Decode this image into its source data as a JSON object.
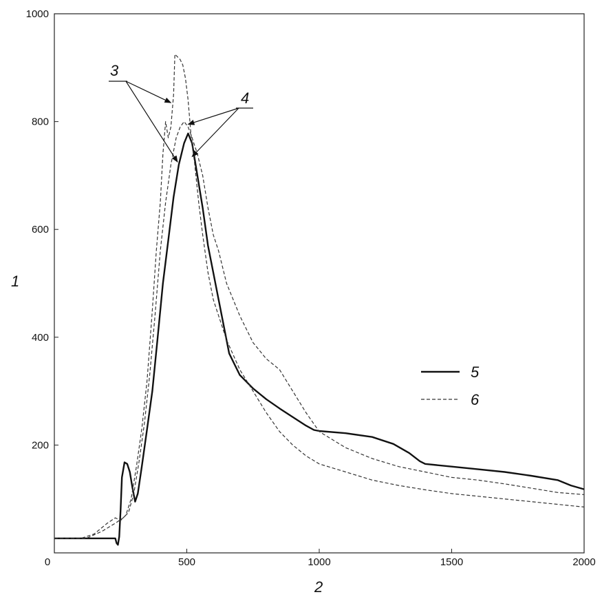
{
  "chart_data": {
    "type": "line",
    "title": "",
    "xlabel": "2",
    "ylabel": "1",
    "xlim": [
      0,
      2000
    ],
    "ylim": [
      0,
      1000
    ],
    "x_ticks": [
      "0",
      "500",
      "1000",
      "1500",
      "2000"
    ],
    "y_ticks": [
      "200",
      "400",
      "600",
      "800",
      "1000"
    ],
    "grid": false,
    "legend_position": "center-right",
    "series": [
      {
        "name": "5",
        "style": "solid",
        "color": "#111111",
        "points": [
          [
            0,
            27
          ],
          [
            200,
            27
          ],
          [
            230,
            27
          ],
          [
            235,
            18
          ],
          [
            240,
            15
          ],
          [
            245,
            30
          ],
          [
            250,
            80
          ],
          [
            255,
            140
          ],
          [
            265,
            168
          ],
          [
            275,
            165
          ],
          [
            285,
            150
          ],
          [
            295,
            120
          ],
          [
            305,
            95
          ],
          [
            315,
            110
          ],
          [
            330,
            160
          ],
          [
            350,
            230
          ],
          [
            370,
            300
          ],
          [
            390,
            400
          ],
          [
            410,
            500
          ],
          [
            430,
            580
          ],
          [
            450,
            660
          ],
          [
            470,
            720
          ],
          [
            490,
            760
          ],
          [
            505,
            778
          ],
          [
            520,
            760
          ],
          [
            540,
            700
          ],
          [
            560,
            640
          ],
          [
            580,
            570
          ],
          [
            600,
            520
          ],
          [
            620,
            470
          ],
          [
            640,
            420
          ],
          [
            660,
            370
          ],
          [
            680,
            350
          ],
          [
            700,
            330
          ],
          [
            750,
            305
          ],
          [
            800,
            285
          ],
          [
            850,
            268
          ],
          [
            900,
            252
          ],
          [
            950,
            236
          ],
          [
            980,
            228
          ],
          [
            1000,
            226
          ],
          [
            1100,
            222
          ],
          [
            1200,
            215
          ],
          [
            1280,
            202
          ],
          [
            1340,
            185
          ],
          [
            1380,
            170
          ],
          [
            1400,
            165
          ],
          [
            1500,
            160
          ],
          [
            1600,
            155
          ],
          [
            1700,
            150
          ],
          [
            1800,
            143
          ],
          [
            1900,
            135
          ],
          [
            1950,
            125
          ],
          [
            2000,
            118
          ]
        ]
      },
      {
        "name": "6",
        "style": "dashed",
        "color": "#333333",
        "points": [
          [
            0,
            27
          ],
          [
            100,
            27
          ],
          [
            150,
            35
          ],
          [
            200,
            55
          ],
          [
            230,
            65
          ],
          [
            250,
            60
          ],
          [
            270,
            70
          ],
          [
            290,
            100
          ],
          [
            310,
            160
          ],
          [
            330,
            230
          ],
          [
            350,
            320
          ],
          [
            370,
            450
          ],
          [
            385,
            560
          ],
          [
            400,
            650
          ],
          [
            410,
            740
          ],
          [
            420,
            800
          ],
          [
            430,
            770
          ],
          [
            440,
            790
          ],
          [
            450,
            850
          ],
          [
            455,
            925
          ],
          [
            465,
            920
          ],
          [
            475,
            915
          ],
          [
            485,
            905
          ],
          [
            495,
            880
          ],
          [
            505,
            840
          ],
          [
            515,
            780
          ],
          [
            530,
            720
          ],
          [
            545,
            650
          ],
          [
            560,
            590
          ],
          [
            580,
            520
          ],
          [
            600,
            470
          ],
          [
            620,
            440
          ],
          [
            650,
            395
          ],
          [
            700,
            340
          ],
          [
            750,
            300
          ],
          [
            800,
            260
          ],
          [
            850,
            225
          ],
          [
            900,
            200
          ],
          [
            950,
            180
          ],
          [
            1000,
            165
          ],
          [
            1100,
            150
          ],
          [
            1200,
            135
          ],
          [
            1300,
            125
          ],
          [
            1400,
            117
          ],
          [
            1500,
            110
          ],
          [
            1600,
            105
          ],
          [
            1700,
            100
          ],
          [
            1800,
            95
          ],
          [
            1900,
            90
          ],
          [
            2000,
            85
          ]
        ]
      },
      {
        "name": "",
        "style": "dashed",
        "color": "#333333",
        "points": [
          [
            0,
            27
          ],
          [
            120,
            27
          ],
          [
            180,
            40
          ],
          [
            230,
            55
          ],
          [
            260,
            65
          ],
          [
            280,
            75
          ],
          [
            300,
            110
          ],
          [
            320,
            170
          ],
          [
            340,
            240
          ],
          [
            360,
            330
          ],
          [
            380,
            440
          ],
          [
            400,
            560
          ],
          [
            420,
            650
          ],
          [
            440,
            720
          ],
          [
            460,
            770
          ],
          [
            475,
            790
          ],
          [
            490,
            800
          ],
          [
            505,
            790
          ],
          [
            520,
            770
          ],
          [
            540,
            740
          ],
          [
            560,
            700
          ],
          [
            580,
            640
          ],
          [
            600,
            590
          ],
          [
            620,
            560
          ],
          [
            650,
            500
          ],
          [
            700,
            440
          ],
          [
            750,
            390
          ],
          [
            800,
            360
          ],
          [
            850,
            340
          ],
          [
            900,
            300
          ],
          [
            950,
            260
          ],
          [
            1000,
            225
          ],
          [
            1050,
            210
          ],
          [
            1100,
            195
          ],
          [
            1200,
            175
          ],
          [
            1300,
            160
          ],
          [
            1400,
            150
          ],
          [
            1500,
            140
          ],
          [
            1600,
            135
          ],
          [
            1700,
            128
          ],
          [
            1800,
            120
          ],
          [
            1900,
            112
          ],
          [
            2000,
            108
          ]
        ]
      }
    ],
    "annotations": [
      {
        "label": "3",
        "targets": [
          [
            440,
            835
          ],
          [
            465,
            725
          ]
        ]
      },
      {
        "label": "4",
        "targets": [
          [
            505,
            795
          ],
          [
            520,
            735
          ]
        ]
      }
    ]
  }
}
